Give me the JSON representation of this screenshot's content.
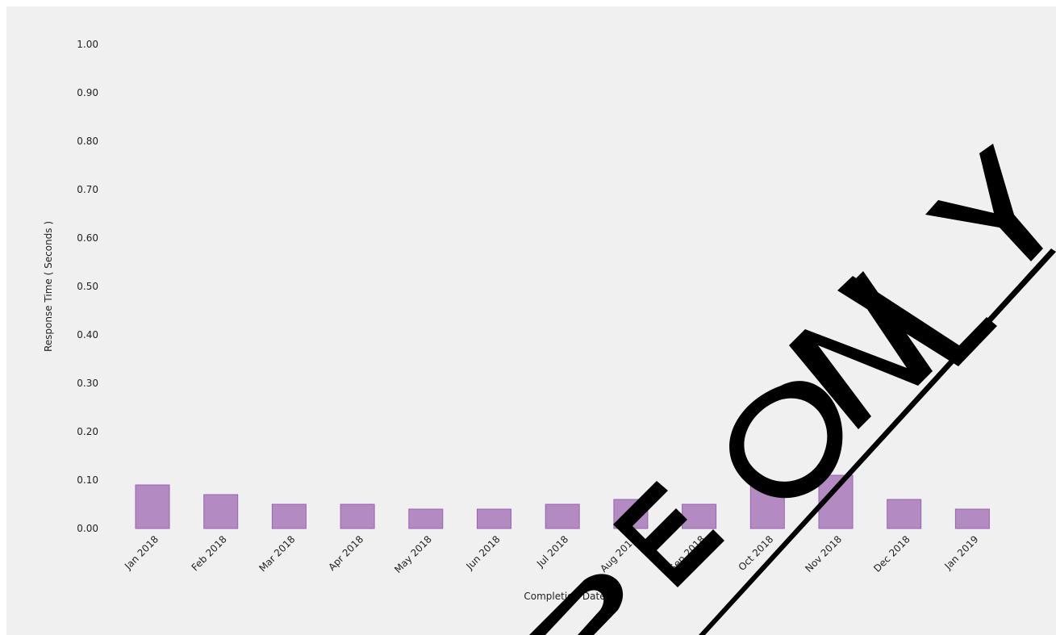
{
  "chart_data": {
    "type": "bar",
    "categories": [
      "Jan 2018",
      "Feb 2018",
      "Mar 2018",
      "Apr 2018",
      "May 2018",
      "Jun 2018",
      "Jul 2018",
      "Aug 2018",
      "Sep 2018",
      "Oct 2018",
      "Nov 2018",
      "Dec 2018",
      "Jan 2019"
    ],
    "values": [
      0.09,
      0.07,
      0.05,
      0.05,
      0.04,
      0.04,
      0.05,
      0.06,
      0.05,
      0.09,
      0.11,
      0.06,
      0.04
    ],
    "title": "",
    "xlabel": "Completion Date",
    "ylabel": "Response Time ( Seconds )",
    "ylim": [
      0,
      1.0
    ],
    "yticks": [
      "0.00",
      "0.10",
      "0.20",
      "0.30",
      "0.40",
      "0.50",
      "0.60",
      "0.70",
      "0.80",
      "0.90",
      "1.00"
    ],
    "grid": false,
    "legend": "none",
    "colors": {
      "bar_fill": "#b38bc2",
      "bar_stroke": "#9a63b0",
      "background": "#f0f0f0"
    }
  },
  "watermark": {
    "text": "SAMPLE ONLY",
    "color": "#000000"
  }
}
